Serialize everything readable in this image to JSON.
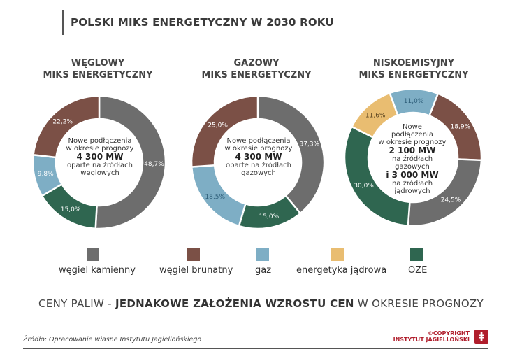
{
  "title": "POLSKI MIKS ENERGETYCZNY W 2030 ROKU",
  "colors": {
    "wegiel_kamienny": "#6d6d6d",
    "wegiel_brunatny": "#7b5046",
    "gaz": "#7eaec5",
    "energetyka_jadrowa": "#e9bd71",
    "oze": "#2f6650"
  },
  "charts": [
    {
      "title_line1": "WĘGLOWY",
      "title_line2": "MIKS ENERGETYCZNY",
      "center": {
        "l1": "Nowe podłączenia",
        "l2": "w okresie prognozy",
        "mw": "4 300 MW",
        "l3": "oparte na źródłach",
        "l4": "węglowych"
      }
    },
    {
      "title_line1": "GAZOWY",
      "title_line2": "MIKS ENERGETYCZNY",
      "center": {
        "l1": "Nowe podłączenia",
        "l2": "w okresie prognozy",
        "mw": "4 300 MW",
        "l3": "oparte na źródłach",
        "l4": "gazowych"
      }
    },
    {
      "title_line1": "NISKOEMISYJNY",
      "title_line2": "MIKS ENERGETYCZNY",
      "center": {
        "l1": "Nowe",
        "l2": "podłączenia",
        "l3": "w okresie prognozy",
        "mw1": "2 100 MW",
        "l4": "na źródłach gazowych",
        "mw2": "i 3 000 MW",
        "l5": "na źródłach",
        "l6": "jądrowych"
      }
    }
  ],
  "legend": [
    {
      "label": "węgiel kamienny",
      "color": "#6d6d6d"
    },
    {
      "label": "węgiel brunatny",
      "color": "#7b5046"
    },
    {
      "label": "gaz",
      "color": "#7eaec5"
    },
    {
      "label": "energetyka jądrowa",
      "color": "#e9bd71"
    },
    {
      "label": "OZE",
      "color": "#2f6650"
    }
  ],
  "banner": {
    "pre": "CENY PALIW - ",
    "bold": "JEDNAKOWE ZAŁOŻENIA WZROSTU CEN",
    "post": " W OKRESIE PROGNOZY"
  },
  "source": "Źródło: Opracowanie własne Instytutu Jagiellońskiego",
  "copyright_line1": "©COPYRIGHT",
  "copyright_line2": "INSTYTUT JAGIELLOŃSKI",
  "logo_glyph": "ǂ",
  "chart_data": [
    {
      "type": "pie",
      "title": "WĘGLOWY MIKS ENERGETYCZNY",
      "categories": [
        "węgiel kamienny",
        "OZE",
        "gaz",
        "węgiel brunatny"
      ],
      "values": [
        48.7,
        15.0,
        9.8,
        22.2
      ],
      "labels": [
        "48,7%",
        "15,0%",
        "9,8%",
        "22,2%"
      ],
      "colors": [
        "#6d6d6d",
        "#2f6650",
        "#7eaec5",
        "#7b5046"
      ],
      "label_colors": [
        "#ffffff",
        "#ffffff",
        "#ffffff",
        "#ffffff"
      ]
    },
    {
      "type": "pie",
      "title": "GAZOWY MIKS ENERGETYCZNY",
      "categories": [
        "węgiel kamienny",
        "OZE",
        "gaz",
        "węgiel brunatny"
      ],
      "values": [
        37.3,
        15.0,
        18.5,
        25.0
      ],
      "labels": [
        "37,3%",
        "15,0%",
        "18,5%",
        "25,0%"
      ],
      "colors": [
        "#6d6d6d",
        "#2f6650",
        "#7eaec5",
        "#7b5046"
      ],
      "label_colors": [
        "#ffffff",
        "#ffffff",
        "#2f5f7a",
        "#ffffff"
      ]
    },
    {
      "type": "pie",
      "title": "NISKOEMISYJNY MIKS ENERGETYCZNY",
      "categories": [
        "węgiel brunatny",
        "węgiel kamienny",
        "OZE",
        "energetyka jądrowa",
        "gaz"
      ],
      "values": [
        18.9,
        24.5,
        30.0,
        11.6,
        11.0
      ],
      "labels": [
        "18,9%",
        "24,5%",
        "30,0%",
        "11,6%",
        "11,0%"
      ],
      "colors": [
        "#7b5046",
        "#6d6d6d",
        "#2f6650",
        "#e9bd71",
        "#7eaec5"
      ],
      "label_colors": [
        "#ffffff",
        "#ffffff",
        "#ffffff",
        "#5a4420",
        "#2f5f7a"
      ]
    }
  ]
}
